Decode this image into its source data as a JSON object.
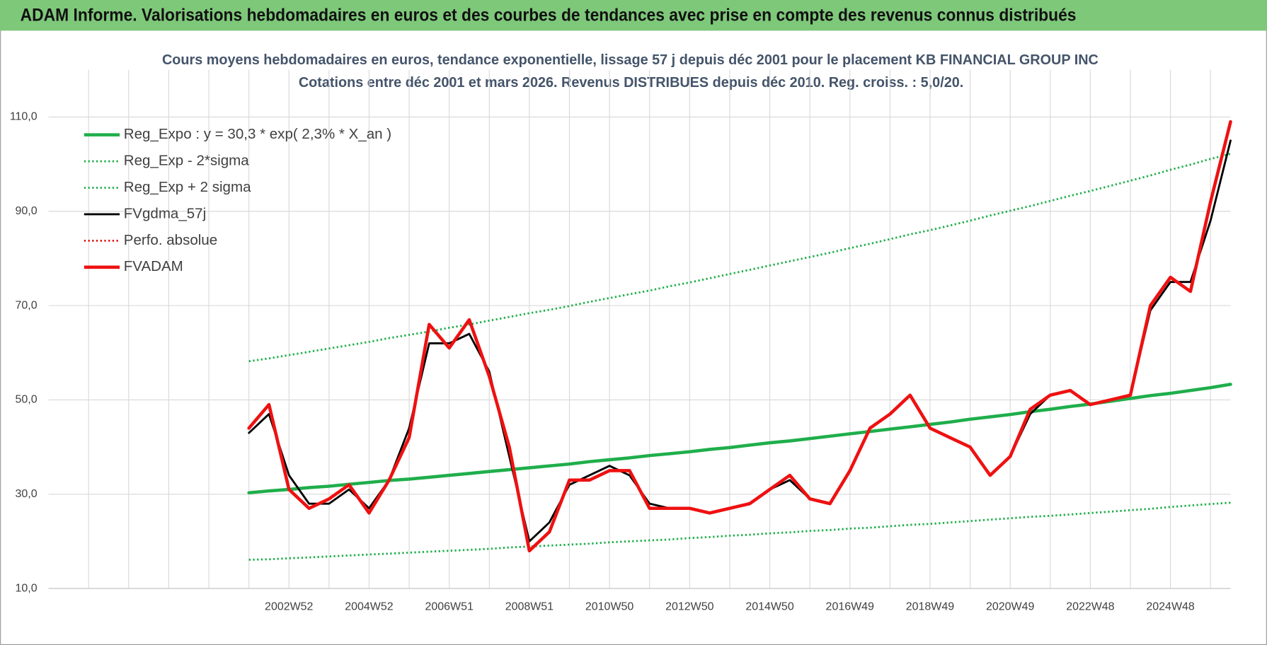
{
  "header": {
    "title": "ADAM Informe. Valorisations hebdomadaires en euros et des courbes de tendances avec prise en compte des revenus connus distribués"
  },
  "chart_data": {
    "type": "line",
    "title": "Cours moyens hebdomadaires en euros, tendance exponentielle, lissage 57 j depuis déc 2001 pour le placement KB FINANCIAL GROUP INC",
    "subtitle": "Cotations entre déc 2001 et mars 2026.  Revenus DISTRIBUES depuis déc 2010. Reg. croiss. : 5,0/20.",
    "categories": [
      null,
      null,
      null,
      null,
      null,
      null,
      null,
      null,
      null,
      null,
      null,
      null,
      "2002W52",
      null,
      null,
      null,
      "2004W52",
      null,
      null,
      null,
      "2006W51",
      null,
      null,
      null,
      "2008W51",
      null,
      null,
      null,
      "2010W50",
      null,
      null,
      null,
      "2012W50",
      null,
      null,
      null,
      "2014W50",
      null,
      null,
      null,
      "2016W49",
      null,
      null,
      null,
      "2018W49",
      null,
      null,
      null,
      "2020W49",
      null,
      null,
      null,
      "2022W48",
      null,
      null,
      null,
      "2024W48",
      null,
      null,
      null
    ],
    "ylim": [
      10,
      120
    ],
    "yticks": [
      {
        "value": 10,
        "label": "10,0"
      },
      {
        "value": 30,
        "label": "30,0"
      },
      {
        "value": 50,
        "label": "50,0"
      },
      {
        "value": 70,
        "label": "70,0"
      },
      {
        "value": 90,
        "label": "90,0"
      },
      {
        "value": 110,
        "label": "110,0"
      }
    ],
    "grid": true,
    "legend": "upper left",
    "series": [
      {
        "name": "Reg_Expo : y = 30,3 * exp( 2,3% *  X_an )",
        "color": "#1fae4b",
        "style": "thick",
        "values": [
          null,
          null,
          null,
          null,
          null,
          null,
          null,
          null,
          null,
          null,
          30.3,
          30.7,
          31.0,
          31.4,
          31.7,
          32.1,
          32.5,
          32.9,
          33.2,
          33.6,
          34.0,
          34.4,
          34.8,
          35.2,
          35.6,
          36.0,
          36.4,
          36.9,
          37.3,
          37.7,
          38.2,
          38.6,
          39.0,
          39.5,
          39.9,
          40.4,
          40.9,
          41.3,
          41.8,
          42.3,
          42.8,
          43.3,
          43.8,
          44.3,
          44.8,
          45.3,
          45.9,
          46.4,
          46.9,
          47.5,
          48.0,
          48.6,
          49.1,
          49.7,
          50.3,
          50.9,
          51.4,
          52.0,
          52.6,
          53.3
        ]
      },
      {
        "name": "Reg_Exp - 2*sigma",
        "color": "#1fae4b",
        "style": "dotted",
        "values": [
          null,
          null,
          null,
          null,
          null,
          null,
          null,
          null,
          null,
          null,
          16.1,
          16.2,
          16.4,
          16.6,
          16.8,
          17.0,
          17.2,
          17.4,
          17.6,
          17.8,
          18.0,
          18.2,
          18.4,
          18.7,
          18.9,
          19.1,
          19.3,
          19.5,
          19.8,
          20.0,
          20.2,
          20.4,
          20.7,
          20.9,
          21.2,
          21.4,
          21.7,
          21.9,
          22.2,
          22.4,
          22.7,
          22.9,
          23.2,
          23.5,
          23.7,
          24.0,
          24.3,
          24.6,
          24.9,
          25.2,
          25.4,
          25.7,
          26.0,
          26.3,
          26.6,
          26.9,
          27.3,
          27.6,
          27.9,
          28.2
        ]
      },
      {
        "name": "Reg_Exp + 2 sigma",
        "color": "#1fae4b",
        "style": "dotted",
        "values": [
          null,
          null,
          null,
          null,
          null,
          null,
          null,
          null,
          null,
          null,
          58.2,
          58.8,
          59.5,
          60.2,
          60.9,
          61.6,
          62.3,
          63.1,
          63.8,
          64.5,
          65.3,
          66.0,
          66.8,
          67.6,
          68.4,
          69.1,
          69.9,
          70.8,
          71.6,
          72.4,
          73.2,
          74.1,
          74.9,
          75.8,
          76.7,
          77.6,
          78.5,
          79.4,
          80.3,
          81.2,
          82.2,
          83.1,
          84.1,
          85.1,
          86.0,
          87.0,
          88.0,
          89.1,
          90.1,
          91.1,
          92.2,
          93.3,
          94.3,
          95.4,
          96.5,
          97.6,
          98.8,
          99.9,
          101.1,
          102.2
        ]
      },
      {
        "name": "FVgdma_57j",
        "color": "#000000",
        "style": "solid",
        "values": [
          null,
          null,
          null,
          null,
          null,
          null,
          null,
          null,
          null,
          null,
          43,
          47,
          34,
          28,
          28,
          31,
          27,
          33,
          44,
          62,
          62,
          64,
          56,
          38,
          20,
          24,
          32,
          34,
          36,
          34,
          28,
          27,
          27,
          26,
          27,
          28,
          31,
          33,
          29,
          28,
          35,
          44,
          47,
          51,
          44,
          42,
          40,
          34,
          38,
          47,
          51,
          52,
          49,
          50,
          51,
          69,
          75,
          75,
          88,
          105
        ]
      },
      {
        "name": "Perfo. absolue",
        "color": "#e01010",
        "style": "dotted",
        "values": [
          null,
          null,
          null,
          null,
          null,
          null,
          null,
          null,
          null,
          null,
          null,
          null,
          null,
          null,
          null,
          null,
          null,
          null,
          null,
          null,
          null,
          null,
          null,
          null,
          null,
          null,
          null,
          null,
          null,
          null,
          null,
          null,
          null,
          null,
          null,
          null,
          null,
          null,
          null,
          null,
          null,
          null,
          null,
          null,
          null,
          null,
          null,
          null,
          null,
          null,
          null,
          null,
          null,
          null,
          null,
          null,
          null,
          null,
          null,
          null
        ]
      },
      {
        "name": "FVADAM",
        "color": "#ee1111",
        "style": "thick",
        "values": [
          null,
          null,
          null,
          null,
          null,
          null,
          null,
          null,
          null,
          null,
          44,
          49,
          31,
          27,
          29,
          32,
          26,
          33,
          42,
          66,
          61,
          67,
          55,
          40,
          18,
          22,
          33,
          33,
          35,
          35,
          27,
          27,
          27,
          26,
          27,
          28,
          31,
          34,
          29,
          28,
          35,
          44,
          47,
          51,
          44,
          42,
          40,
          34,
          38,
          48,
          51,
          52,
          49,
          50,
          51,
          70,
          76,
          73,
          92,
          109
        ]
      }
    ]
  }
}
